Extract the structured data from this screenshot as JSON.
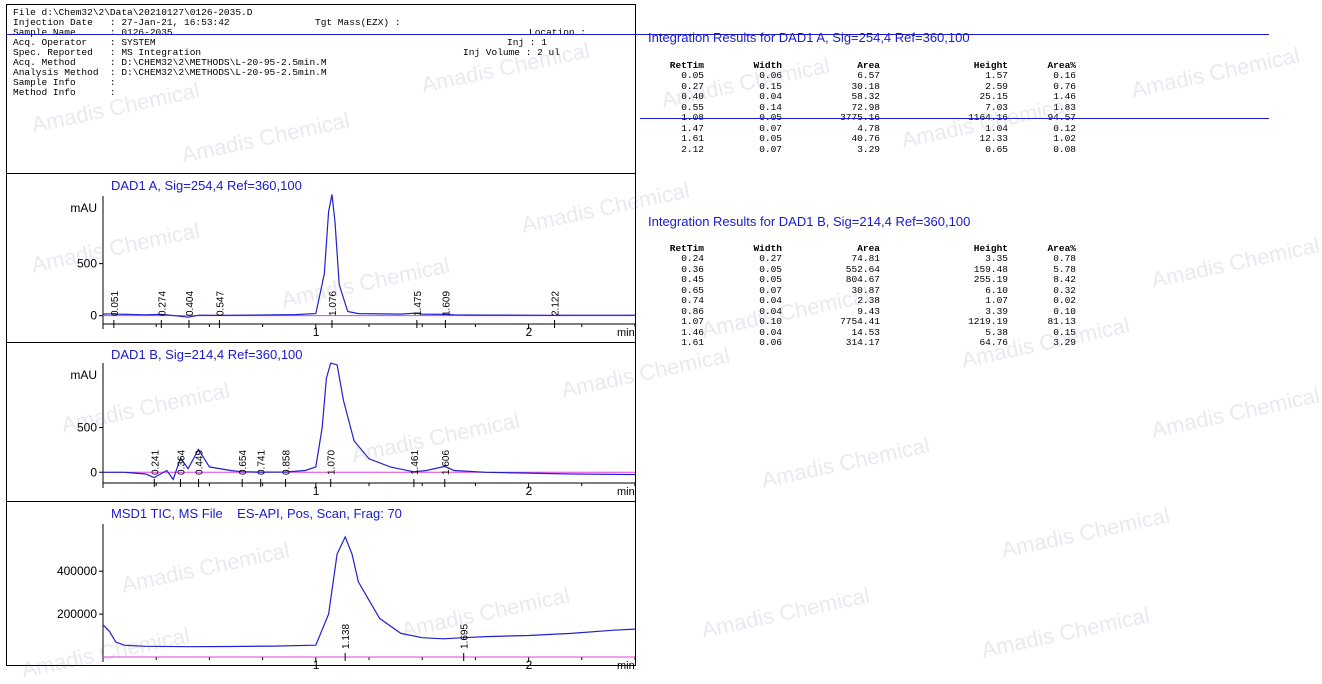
{
  "header": {
    "lines": [
      "File d:\\Chem32\\2\\Data\\20210127\\0126-2035.D",
      "Injection Date   : 27-Jan-21, 16:53:42",
      "Sample Name      : 0126-2035",
      "Acq. Operator    : SYSTEM",
      "Spec. Reported   : MS Integration",
      "Acq. Method      : D:\\CHEM32\\2\\METHODS\\L-20-95-2.5min.M",
      "Analysis Method  : D:\\CHEM32\\2\\METHODS\\L-20-95-2.5min.M",
      "Sample Info      :",
      "Method Info      :"
    ],
    "right_lines": [
      "Tgt Mass(EZX) :",
      "Location :",
      "Inj : 1",
      "Inj Volume : 2 ul"
    ]
  },
  "watermark": "Amadis Chemical",
  "chart_data": [
    {
      "type": "line",
      "title": "DAD1 A, Sig=254,4 Ref=360,100",
      "ylabel": "mAU",
      "xlabel": "min",
      "xlim": [
        0,
        2.5
      ],
      "ylim": [
        -80,
        1150
      ],
      "xticks": [
        1,
        2
      ],
      "yticks": [
        0,
        500
      ],
      "peak_labels": [
        "0.051",
        "0.274",
        "0.404",
        "0.547",
        "1.076",
        "1.475",
        "1.609",
        "2.122"
      ],
      "peak_times": [
        0.051,
        0.274,
        0.404,
        0.547,
        1.076,
        1.475,
        1.609,
        2.122
      ],
      "series": [
        {
          "x": [
            0,
            0.04,
            0.051,
            0.07,
            0.2,
            0.27,
            0.3,
            0.4,
            0.45,
            0.55,
            0.7,
            0.9,
            1.0,
            1.04,
            1.06,
            1.076,
            1.09,
            1.11,
            1.15,
            1.2,
            1.4,
            1.47,
            1.5,
            1.61,
            1.65,
            1.8,
            2.0,
            2.12,
            2.2,
            2.5
          ],
          "y": [
            15,
            18,
            20,
            15,
            8,
            12,
            8,
            -15,
            5,
            4,
            6,
            10,
            20,
            400,
            1000,
            1164,
            900,
            300,
            40,
            20,
            15,
            25,
            15,
            12,
            8,
            6,
            5,
            4,
            5,
            5
          ]
        }
      ]
    },
    {
      "type": "line",
      "title": "DAD1 B, Sig=214,4 Ref=360,100",
      "ylabel": "mAU",
      "xlabel": "min",
      "xlim": [
        0,
        2.5
      ],
      "ylim": [
        -120,
        1220
      ],
      "xticks": [
        1,
        2
      ],
      "yticks": [
        0,
        500
      ],
      "peak_labels": [
        "0.241",
        "0.364",
        "0.449",
        "0.654",
        "0.741",
        "0.858",
        "1.070",
        "1.461",
        "1.606"
      ],
      "peak_times": [
        0.241,
        0.364,
        0.449,
        0.654,
        0.741,
        0.858,
        1.07,
        1.461,
        1.606
      ],
      "series": [
        {
          "x": [
            0,
            0.1,
            0.2,
            0.24,
            0.3,
            0.33,
            0.364,
            0.4,
            0.449,
            0.5,
            0.6,
            0.65,
            0.74,
            0.86,
            0.95,
            1.0,
            1.03,
            1.05,
            1.07,
            1.1,
            1.13,
            1.18,
            1.25,
            1.35,
            1.46,
            1.52,
            1.606,
            1.65,
            1.8,
            2.0,
            2.2,
            2.5
          ],
          "y": [
            0,
            0,
            -20,
            -60,
            20,
            -80,
            160,
            40,
            255,
            60,
            20,
            6,
            2,
            3,
            20,
            60,
            500,
            1050,
            1219,
            1200,
            800,
            350,
            150,
            60,
            5,
            20,
            65,
            20,
            0,
            -10,
            -20,
            -25
          ]
        }
      ]
    },
    {
      "type": "line",
      "title": "MSD1 TIC, MS File    ES-API, Pos, Scan, Frag: 70",
      "ylabel": "",
      "xlabel": "min",
      "xlim": [
        0,
        2.5
      ],
      "ylim": [
        0,
        620000
      ],
      "xticks": [
        1,
        2
      ],
      "yticks": [
        200000,
        400000
      ],
      "peak_labels": [
        "1.138",
        "1.695"
      ],
      "peak_times": [
        1.138,
        1.695
      ],
      "series": [
        {
          "x": [
            0,
            0.03,
            0.06,
            0.1,
            0.2,
            0.4,
            0.6,
            0.8,
            1.0,
            1.06,
            1.1,
            1.138,
            1.17,
            1.2,
            1.3,
            1.4,
            1.5,
            1.6,
            1.695,
            1.8,
            2.0,
            2.2,
            2.4,
            2.5
          ],
          "y": [
            150000,
            120000,
            70000,
            55000,
            50000,
            48000,
            49000,
            51000,
            55000,
            200000,
            480000,
            560000,
            480000,
            350000,
            180000,
            110000,
            90000,
            85000,
            90000,
            95000,
            100000,
            110000,
            125000,
            130000
          ]
        }
      ]
    }
  ],
  "results": [
    {
      "title": "Integration Results for DAD1 A, Sig=254,4 Ref=360,100",
      "columns": [
        "RetTim",
        "Width",
        "Area",
        "Height",
        "Area%"
      ],
      "rows": [
        [
          "0.05",
          "0.06",
          "6.57",
          "1.57",
          "0.16"
        ],
        [
          "0.27",
          "0.15",
          "30.18",
          "2.59",
          "0.76"
        ],
        [
          "0.40",
          "0.04",
          "58.32",
          "25.15",
          "1.46"
        ],
        [
          "0.55",
          "0.14",
          "72.98",
          "7.03",
          "1.83"
        ],
        [
          "1.08",
          "0.05",
          "3775.16",
          "1164.16",
          "94.57"
        ],
        [
          "1.47",
          "0.07",
          "4.78",
          "1.04",
          "0.12"
        ],
        [
          "1.61",
          "0.05",
          "40.76",
          "12.33",
          "1.02"
        ],
        [
          "2.12",
          "0.07",
          "3.29",
          "0.65",
          "0.08"
        ]
      ]
    },
    {
      "title": "Integration Results for DAD1 B, Sig=214,4 Ref=360,100",
      "columns": [
        "RetTim",
        "Width",
        "Area",
        "Height",
        "Area%"
      ],
      "rows": [
        [
          "0.24",
          "0.27",
          "74.81",
          "3.35",
          "0.78"
        ],
        [
          "0.36",
          "0.05",
          "552.64",
          "159.48",
          "5.78"
        ],
        [
          "0.45",
          "0.05",
          "804.67",
          "255.19",
          "8.42"
        ],
        [
          "0.65",
          "0.07",
          "30.87",
          "6.10",
          "0.32"
        ],
        [
          "0.74",
          "0.04",
          "2.38",
          "1.07",
          "0.02"
        ],
        [
          "0.86",
          "0.04",
          "9.43",
          "3.39",
          "0.10"
        ],
        [
          "1.07",
          "0.10",
          "7754.41",
          "1219.19",
          "81.13"
        ],
        [
          "1.46",
          "0.04",
          "14.53",
          "5.38",
          "0.15"
        ],
        [
          "1.61",
          "0.06",
          "314.17",
          "64.76",
          "3.29"
        ]
      ]
    }
  ]
}
